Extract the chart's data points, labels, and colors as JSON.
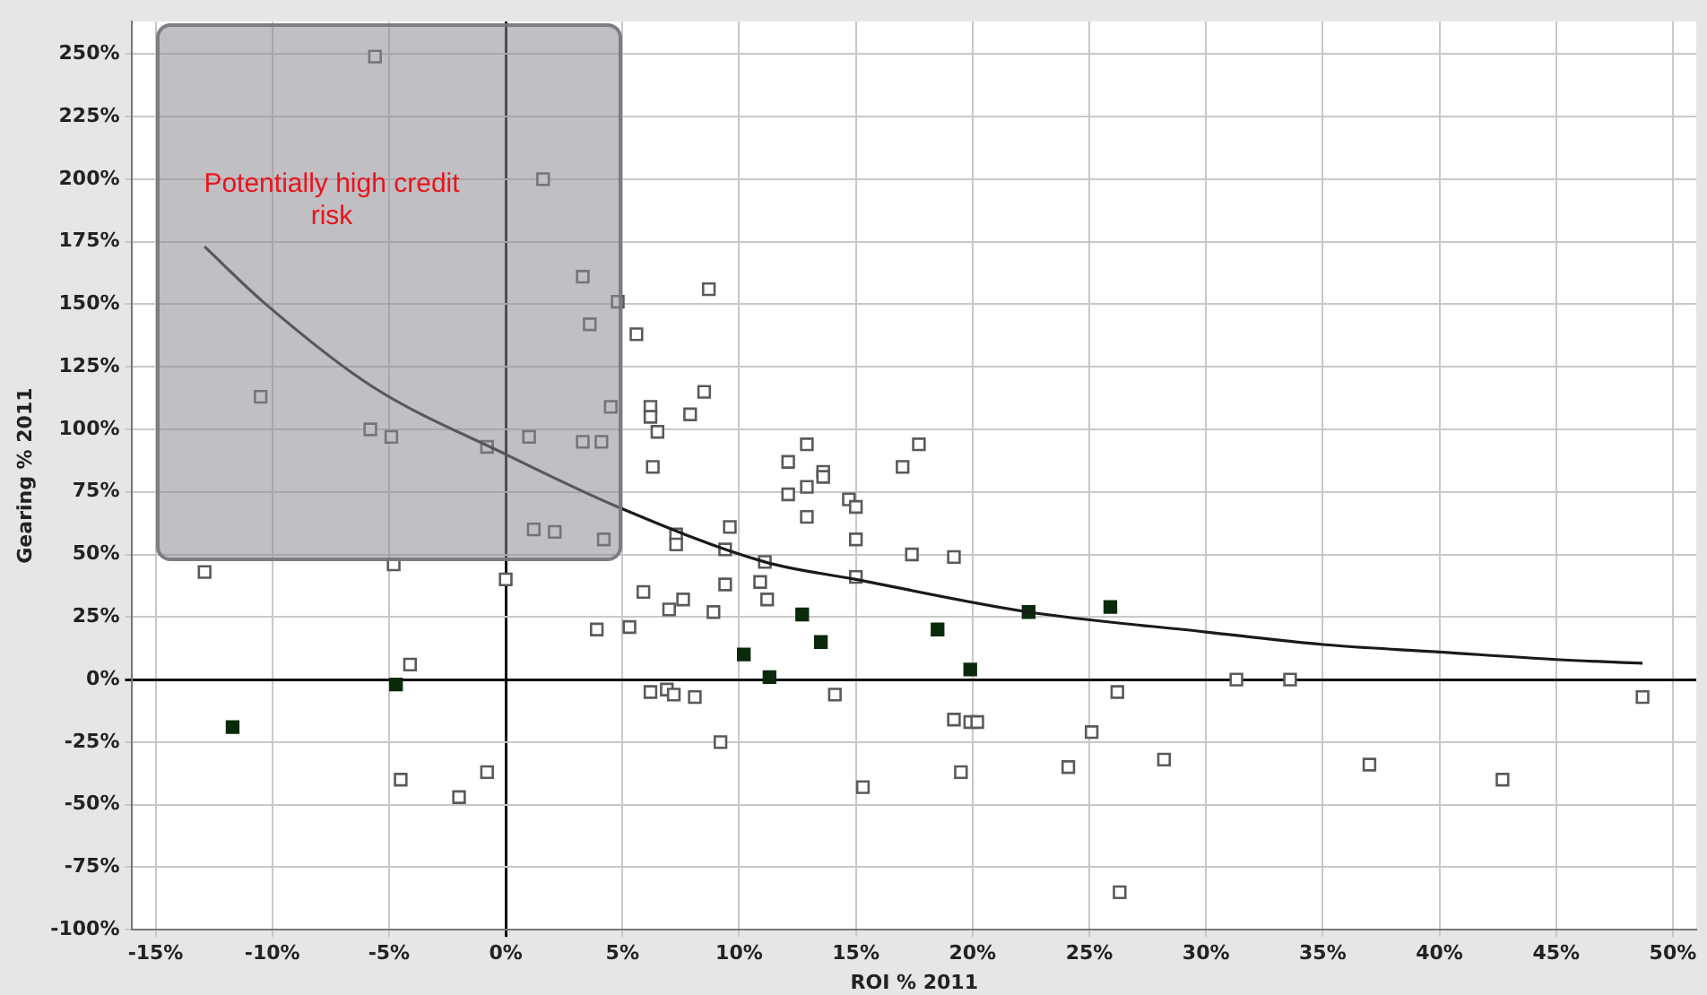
{
  "chart_data": {
    "type": "scatter",
    "xlabel": "ROI % 2011",
    "ylabel": "Gearing % 2011",
    "xlim": [
      -16,
      51
    ],
    "ylim": [
      -100,
      263
    ],
    "xticks": [
      {
        "value": -15,
        "label": "-15%"
      },
      {
        "value": -10,
        "label": "-10%"
      },
      {
        "value": -5,
        "label": "-5%"
      },
      {
        "value": 0,
        "label": "0%"
      },
      {
        "value": 5,
        "label": "5%"
      },
      {
        "value": 10,
        "label": "10%"
      },
      {
        "value": 15,
        "label": "15%"
      },
      {
        "value": 20,
        "label": "20%"
      },
      {
        "value": 25,
        "label": "25%"
      },
      {
        "value": 30,
        "label": "30%"
      },
      {
        "value": 35,
        "label": "35%"
      },
      {
        "value": 40,
        "label": "40%"
      },
      {
        "value": 45,
        "label": "45%"
      },
      {
        "value": 50,
        "label": "50%"
      }
    ],
    "yticks": [
      {
        "value": -100,
        "label": "-100%"
      },
      {
        "value": -75,
        "label": "-75%"
      },
      {
        "value": -50,
        "label": "-50%"
      },
      {
        "value": -25,
        "label": "-25%"
      },
      {
        "value": 0,
        "label": "0%"
      },
      {
        "value": 25,
        "label": "25%"
      },
      {
        "value": 50,
        "label": "50%"
      },
      {
        "value": 75,
        "label": "75%"
      },
      {
        "value": 100,
        "label": "100%"
      },
      {
        "value": 125,
        "label": "125%"
      },
      {
        "value": 150,
        "label": "150%"
      },
      {
        "value": 175,
        "label": "175%"
      },
      {
        "value": 200,
        "label": "200%"
      },
      {
        "value": 225,
        "label": "225%"
      },
      {
        "value": 250,
        "label": "250%"
      }
    ],
    "grid": true,
    "legend": false,
    "marker": "square",
    "annotations": [
      "Potentially high credit risk"
    ],
    "series": [
      {
        "color": "#5a5a5a",
        "x": [
          -5.6,
          1.6,
          3.3,
          4.8,
          3.6,
          5.6,
          8.7,
          -10.5,
          -5.8,
          -4.9,
          -0.8,
          1.0,
          3.3,
          4.1,
          4.5,
          6.2,
          6.2,
          6.5,
          6.3,
          8.5,
          7.9,
          12.9,
          17.7,
          12.1,
          17.0,
          13.6,
          13.6,
          12.9,
          12.1,
          14.7,
          15.0,
          12.9,
          1.2,
          2.1,
          4.2,
          7.3,
          7.3,
          9.6,
          9.4,
          15.0,
          17.4,
          19.2,
          11.1,
          0.0,
          15.0,
          5.9,
          9.4,
          10.9,
          11.2,
          7.6,
          7.0,
          8.9,
          3.9,
          5.3,
          6.2,
          6.9,
          7.2,
          8.1,
          14.1,
          9.2,
          19.2,
          19.9,
          20.2,
          19.5,
          15.3,
          24.1,
          -0.8,
          26.2,
          25.1,
          28.2,
          31.3,
          33.6,
          37.0,
          42.7,
          48.7,
          26.3,
          -12.9,
          -4.8,
          -4.1,
          -4.5,
          -2.0
        ],
        "values": [
          249,
          200,
          161,
          151,
          142,
          138,
          156,
          113,
          100,
          97,
          93,
          97,
          95,
          95,
          109,
          109,
          105,
          99,
          85,
          115,
          106,
          94,
          94,
          87,
          85,
          83,
          81,
          77,
          74,
          72,
          69,
          65,
          60,
          59,
          56,
          58,
          54,
          61,
          52,
          56,
          50,
          49,
          47,
          40,
          41,
          35,
          38,
          39,
          32,
          32,
          28,
          27,
          20,
          21,
          -5,
          -4,
          -6,
          -7,
          -6,
          -25,
          -16,
          -17,
          -17,
          -37,
          -43,
          -35,
          -37,
          -5,
          -21,
          -32,
          0,
          0,
          -34,
          -40,
          -7,
          -85,
          43,
          46,
          6,
          -40,
          -47
        ]
      },
      {
        "color": "#0b2a0b",
        "x": [
          12.7,
          10.2,
          13.5,
          11.3,
          18.5,
          19.9,
          22.4,
          25.9,
          -11.7,
          -4.7
        ],
        "values": [
          26,
          10,
          15,
          1,
          20,
          4,
          27,
          29,
          -19,
          -2
        ]
      },
      {
        "type": "line",
        "color": "#1a1a1a",
        "marker": "none",
        "x": [
          -12.9,
          -10.4,
          -5.7,
          0,
          4.8,
          11.1,
          15,
          22.4,
          30,
          35,
          40,
          45,
          48.7
        ],
        "values": [
          173,
          151,
          117,
          90,
          69,
          47,
          40,
          27,
          19,
          14,
          11,
          8,
          6.5
        ]
      }
    ]
  }
}
